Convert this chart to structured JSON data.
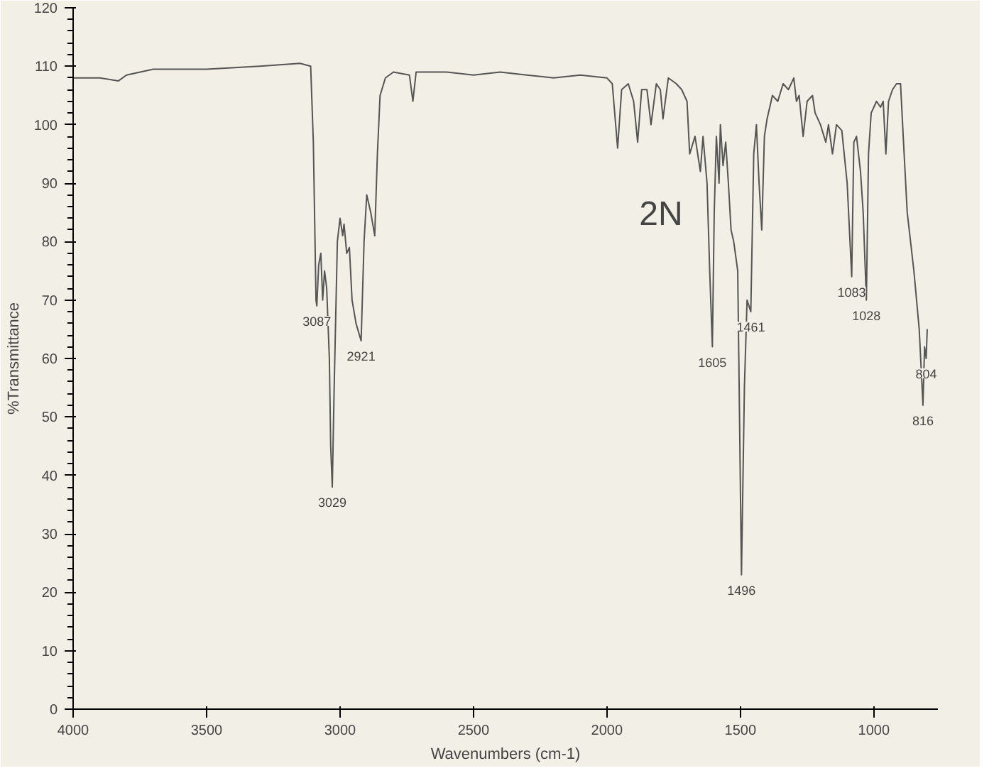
{
  "chart_data": {
    "type": "line",
    "xlabel": "Wavenumbers (cm-1)",
    "ylabel": "%Transmittance",
    "xlim": [
      4000,
      760
    ],
    "ylim": [
      0,
      120
    ],
    "xticks": [
      4000,
      3500,
      3000,
      2500,
      2000,
      1500,
      1000
    ],
    "yticks": [
      0,
      10,
      20,
      30,
      40,
      50,
      60,
      70,
      80,
      90,
      100,
      110,
      120
    ],
    "grid": false,
    "marker": "none",
    "line_style": "solid",
    "series": [
      {
        "color": "#555555",
        "x": [
          4000,
          3900,
          3830,
          3800,
          3700,
          3500,
          3300,
          3150,
          3110,
          3100,
          3090,
          3087,
          3080,
          3072,
          3065,
          3058,
          3050,
          3040,
          3035,
          3029,
          3022,
          3010,
          3000,
          2990,
          2985,
          2975,
          2965,
          2955,
          2940,
          2921,
          2910,
          2900,
          2885,
          2870,
          2860,
          2850,
          2830,
          2800,
          2740,
          2727,
          2715,
          2600,
          2500,
          2400,
          2300,
          2200,
          2100,
          2000,
          1980,
          1960,
          1945,
          1920,
          1900,
          1885,
          1870,
          1850,
          1835,
          1815,
          1800,
          1790,
          1770,
          1740,
          1720,
          1700,
          1690,
          1670,
          1660,
          1650,
          1640,
          1625,
          1615,
          1605,
          1598,
          1590,
          1580,
          1575,
          1565,
          1555,
          1545,
          1535,
          1525,
          1510,
          1496,
          1485,
          1475,
          1461,
          1450,
          1440,
          1430,
          1420,
          1410,
          1400,
          1380,
          1360,
          1340,
          1320,
          1300,
          1290,
          1280,
          1265,
          1250,
          1230,
          1220,
          1200,
          1180,
          1170,
          1155,
          1140,
          1120,
          1100,
          1083,
          1075,
          1065,
          1050,
          1040,
          1028,
          1020,
          1010,
          1000,
          990,
          975,
          965,
          955,
          945,
          930,
          915,
          900,
          890,
          875,
          850,
          830,
          816,
          810,
          804,
          800
        ],
        "values": [
          108,
          108,
          107.5,
          108.5,
          109.5,
          109.5,
          110,
          110.5,
          110,
          97,
          70,
          69,
          76,
          78,
          70,
          75,
          72,
          60,
          45,
          38,
          55,
          80,
          84,
          81,
          83,
          78,
          79,
          70,
          66,
          63,
          80,
          88,
          85,
          81,
          95,
          105,
          108,
          109,
          108.5,
          104,
          109,
          109,
          108.5,
          109,
          108.5,
          108,
          108.5,
          108,
          107,
          96,
          106,
          107,
          104,
          97,
          106,
          106,
          100,
          107,
          106,
          101,
          108,
          107,
          106,
          104,
          95,
          98,
          95,
          92,
          98,
          90,
          75,
          62,
          85,
          98,
          90,
          100,
          93,
          97,
          90,
          82,
          80,
          75,
          23,
          55,
          70,
          68,
          95,
          100,
          90,
          82,
          98,
          101,
          105,
          104,
          107,
          106,
          108,
          104,
          105,
          98,
          104,
          105,
          102,
          100,
          97,
          100,
          95,
          100,
          99,
          90,
          74,
          97,
          98,
          92,
          85,
          70,
          95,
          102,
          103,
          104,
          103,
          104,
          95,
          104,
          106,
          107,
          107,
          98,
          85,
          75,
          65,
          52,
          62,
          60,
          65
        ]
      }
    ],
    "annotations": [
      {
        "text": "3087",
        "x": 3087,
        "y": 69
      },
      {
        "text": "3029",
        "x": 3029,
        "y": 38
      },
      {
        "text": "2921",
        "x": 2921,
        "y": 63
      },
      {
        "text": "1605",
        "x": 1605,
        "y": 62
      },
      {
        "text": "1461",
        "x": 1461,
        "y": 68
      },
      {
        "text": "1496",
        "x": 1496,
        "y": 23
      },
      {
        "text": "1083",
        "x": 1083,
        "y": 74
      },
      {
        "text": "1028",
        "x": 1028,
        "y": 70
      },
      {
        "text": "804",
        "x": 804,
        "y": 60
      },
      {
        "text": "816",
        "x": 816,
        "y": 52
      },
      "2N"
    ]
  }
}
